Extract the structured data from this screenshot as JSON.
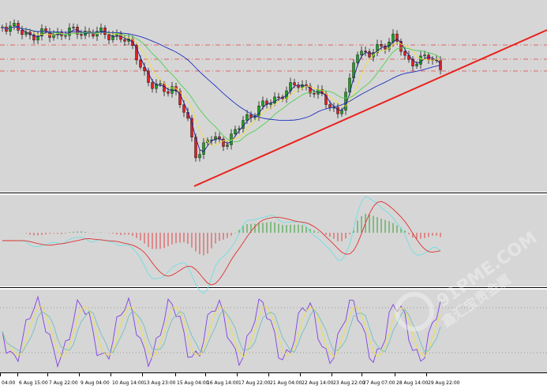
{
  "axis_labels": [
    "04:00",
    "6 Aug 15:00",
    "7 Aug 22:00",
    "9 Aug 04:00",
    "10 Aug 14:00",
    "13 Aug 23:00",
    "15 Aug 04:00",
    "16 Aug 14:00",
    "17 Aug 22:00",
    "21 Aug 04:00",
    "22 Aug 14:00",
    "23 Aug 22:00",
    "27 Aug 07:00",
    "28 Aug 14:00",
    "29 Aug 22:00"
  ],
  "watermark": {
    "site": "91PME.COM",
    "brand": "鑫汇宝贵金属"
  }
}
